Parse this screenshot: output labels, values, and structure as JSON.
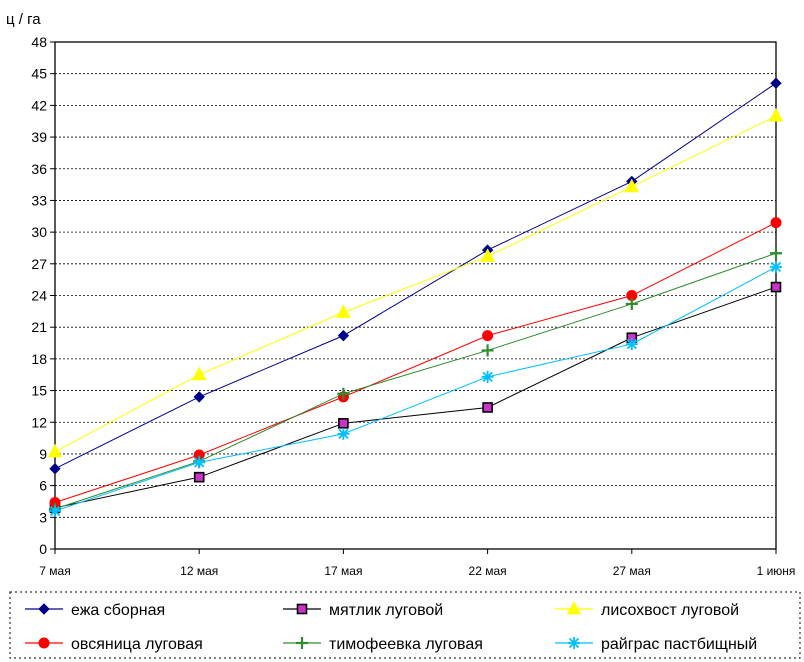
{
  "chart_data": {
    "type": "line",
    "ylabel": "ц / га",
    "ylim": [
      0,
      48
    ],
    "yticks": [
      0,
      3,
      6,
      9,
      12,
      15,
      18,
      21,
      24,
      27,
      30,
      33,
      36,
      39,
      42,
      45,
      48
    ],
    "categories": [
      "7 мая",
      "12 мая",
      "17 мая",
      "22 мая",
      "27 мая",
      "1 июня"
    ],
    "grid": "horizontal-dotted",
    "legend_position": "bottom",
    "series": [
      {
        "name": "ежа сборная",
        "color": "#00008b",
        "marker": "diamond",
        "values": [
          7.6,
          14.4,
          20.2,
          28.3,
          34.8,
          44.1
        ]
      },
      {
        "name": "мятлик луговой",
        "color": "#000000",
        "marker": "square",
        "marker_fill": "#cc33cc",
        "values": [
          3.9,
          6.8,
          11.9,
          13.4,
          20.0,
          24.8
        ]
      },
      {
        "name": "лисохвост луговой",
        "color": "#ffff00",
        "marker": "triangle",
        "values": [
          9.2,
          16.5,
          22.4,
          27.7,
          34.3,
          41.0
        ]
      },
      {
        "name": "овсяница луговая",
        "color": "#ff0000",
        "marker": "circle",
        "values": [
          4.4,
          8.9,
          14.4,
          20.2,
          24.0,
          30.9
        ]
      },
      {
        "name": "тимофеевка луговая",
        "color": "#2e8b2e",
        "marker": "plus",
        "values": [
          3.8,
          8.3,
          14.7,
          18.8,
          23.2,
          28.0
        ]
      },
      {
        "name": "райграс пастбищный",
        "color": "#00bfff",
        "marker": "star",
        "values": [
          3.6,
          8.2,
          10.9,
          16.3,
          19.4,
          26.7
        ]
      }
    ]
  }
}
